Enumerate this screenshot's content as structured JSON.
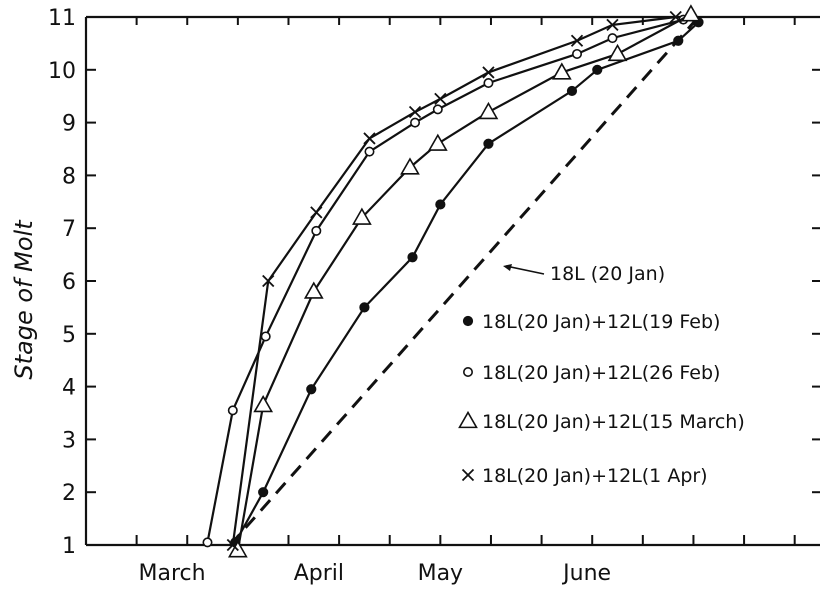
{
  "chart_data": {
    "type": "line",
    "title": "",
    "ylabel": "Stage of Molt",
    "xlabel": "",
    "xlim": [
      0,
      14.5
    ],
    "ylim": [
      1,
      11
    ],
    "x_tick_labels": [
      {
        "label": "March",
        "x": 1.7
      },
      {
        "label": "April",
        "x": 4.6
      },
      {
        "label": "May",
        "x": 7.0
      },
      {
        "label": "June",
        "x": 9.9
      }
    ],
    "x_minor_ticks": [
      0,
      1,
      2,
      3,
      4,
      5,
      6,
      7,
      8,
      9,
      10,
      11,
      12,
      13,
      14
    ],
    "y_ticks": [
      1,
      2,
      3,
      4,
      5,
      6,
      7,
      8,
      9,
      10,
      11
    ],
    "grid": false,
    "legend_position": "right-center",
    "series": [
      {
        "name": "18L (20 Jan)",
        "marker": "none",
        "style": "dashed",
        "x": [
          2.85,
          12.1
        ],
        "y": [
          1.0,
          11.0
        ]
      },
      {
        "name": "18L(20 Jan)+12L(19 Feb)",
        "marker": "filled-circle",
        "style": "solid",
        "x": [
          2.95,
          3.5,
          4.45,
          5.5,
          6.45,
          7.0,
          7.95,
          9.6,
          10.1,
          11.7,
          12.1
        ],
        "y": [
          1.05,
          2.0,
          3.95,
          5.5,
          6.45,
          7.45,
          8.6,
          9.6,
          10.0,
          10.55,
          10.9
        ]
      },
      {
        "name": "18L(20 Jan)+12L(26 Feb)",
        "marker": "open-circle",
        "style": "solid",
        "x": [
          2.4,
          2.9,
          3.55,
          4.55,
          5.6,
          6.5,
          6.95,
          7.95,
          9.7,
          10.4,
          11.8
        ],
        "y": [
          1.05,
          3.55,
          4.95,
          6.95,
          8.45,
          9.0,
          9.25,
          9.75,
          10.3,
          10.6,
          10.95
        ]
      },
      {
        "name": "18L(20 Jan)+12L(15 March)",
        "marker": "open-triangle",
        "style": "solid",
        "x": [
          3.0,
          3.5,
          4.5,
          5.45,
          6.4,
          6.95,
          7.95,
          9.4,
          10.5,
          11.95
        ],
        "y": [
          0.9,
          3.65,
          5.8,
          7.2,
          8.15,
          8.6,
          9.2,
          9.95,
          10.3,
          11.05
        ]
      },
      {
        "name": "18L(20 Jan)+12L(1 Apr)",
        "marker": "x",
        "style": "solid",
        "x": [
          2.9,
          3.6,
          4.55,
          5.6,
          6.5,
          7.0,
          7.95,
          9.7,
          10.4,
          11.65
        ],
        "y": [
          1.0,
          6.0,
          7.3,
          8.7,
          9.2,
          9.45,
          9.95,
          10.55,
          10.85,
          11.0
        ]
      }
    ]
  }
}
